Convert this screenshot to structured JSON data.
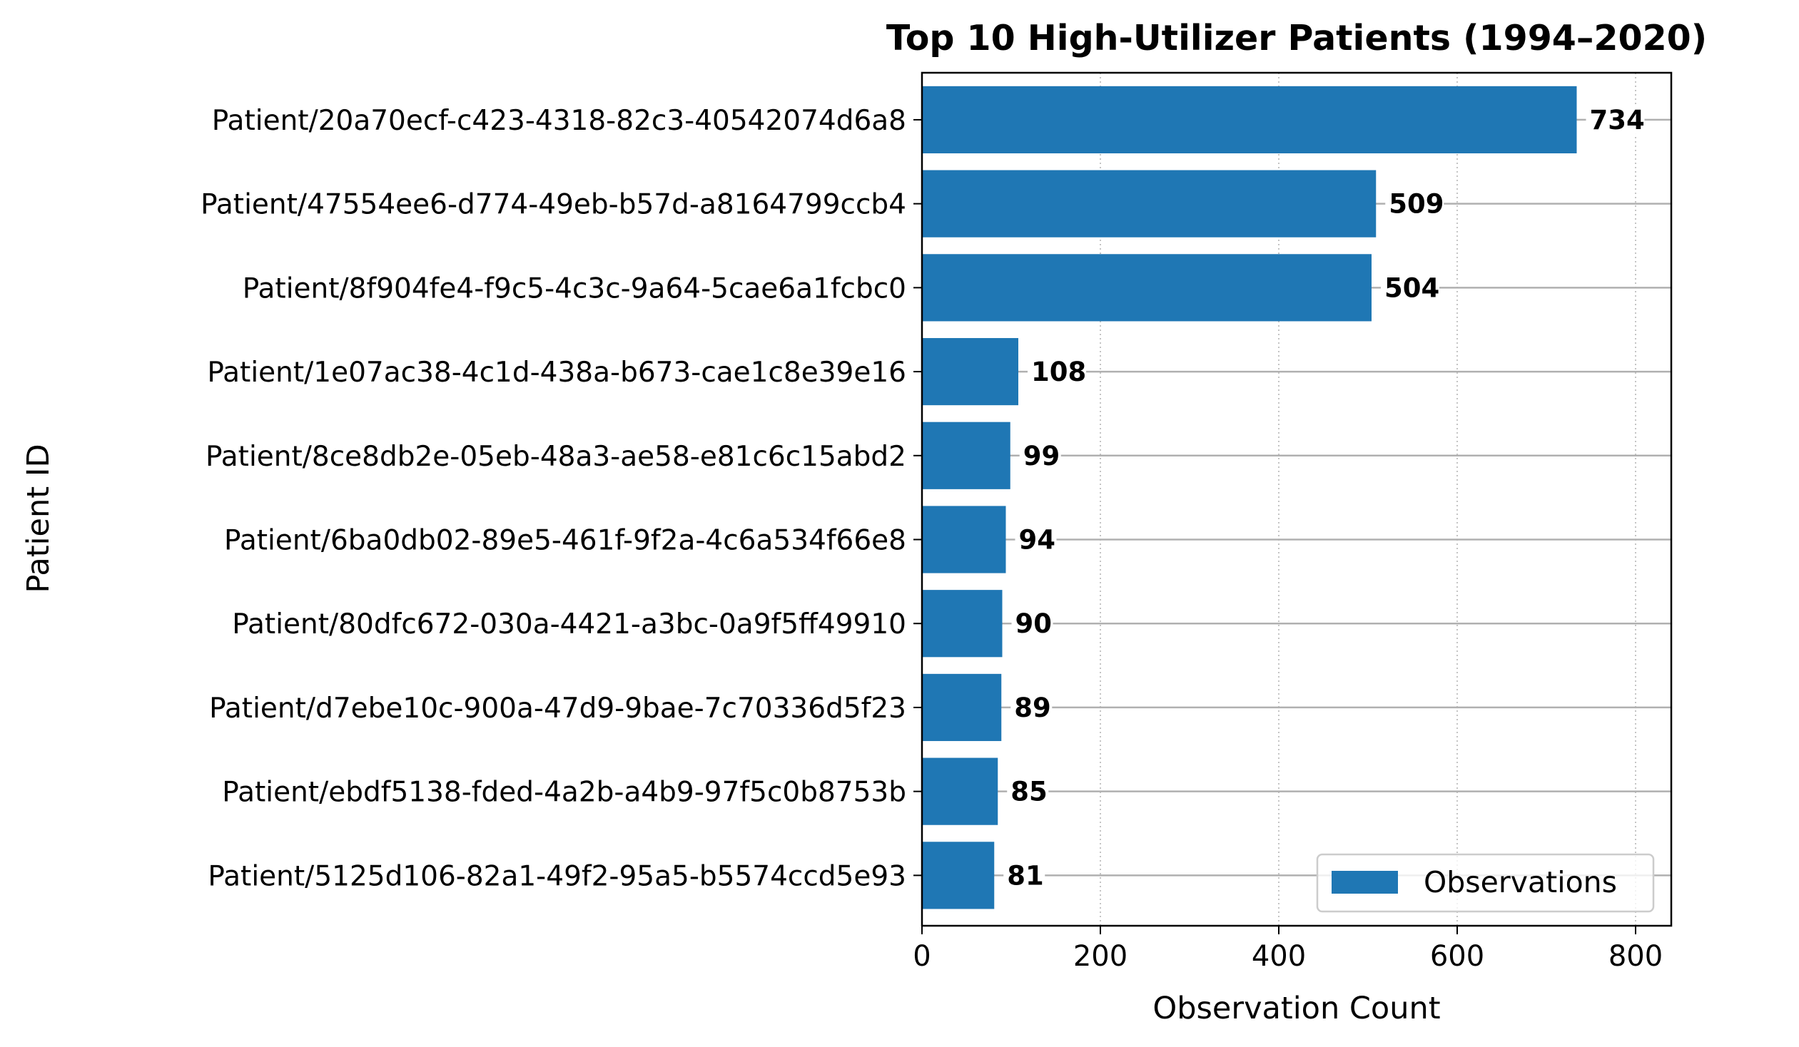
{
  "chart_data": {
    "type": "bar",
    "orientation": "horizontal",
    "title": "Top 10 High-Utilizer Patients (1994–2020)",
    "xlabel": "Observation Count",
    "ylabel": "Patient ID",
    "xlim": [
      0,
      840
    ],
    "xticks": [
      0,
      200,
      400,
      600,
      800
    ],
    "grid": {
      "x": "dotted",
      "y": "solid"
    },
    "legend_position": "lower-right",
    "bar_color": "#1f77b4",
    "categories": [
      "Patient/20a70ecf-c423-4318-82c3-40542074d6a8",
      "Patient/47554ee6-d774-49eb-b57d-a8164799ccb4",
      "Patient/8f904fe4-f9c5-4c3c-9a64-5cae6a1fcbc0",
      "Patient/1e07ac38-4c1d-438a-b673-cae1c8e39e16",
      "Patient/8ce8db2e-05eb-48a3-ae58-e81c6c15abd2",
      "Patient/6ba0db02-89e5-461f-9f2a-4c6a534f66e8",
      "Patient/80dfc672-030a-4421-a3bc-0a9f5ff49910",
      "Patient/d7ebe10c-900a-47d9-9bae-7c70336d5f23",
      "Patient/ebdf5138-fded-4a2b-a4b9-97f5c0b8753b",
      "Patient/5125d106-82a1-49f2-95a5-b5574ccd5e93"
    ],
    "series": [
      {
        "name": "Observations",
        "values": [
          734,
          509,
          504,
          108,
          99,
          94,
          90,
          89,
          85,
          81
        ]
      }
    ]
  }
}
